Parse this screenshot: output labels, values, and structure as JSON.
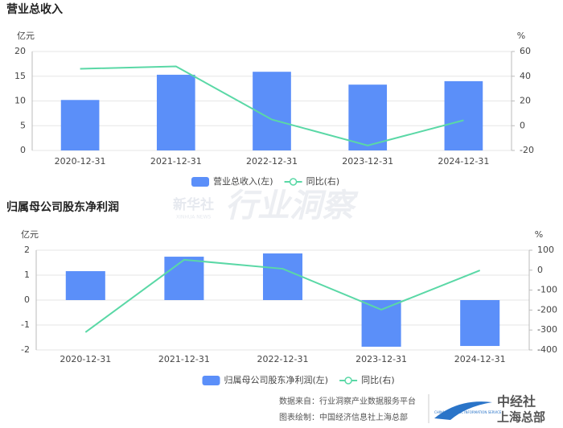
{
  "chart_data": [
    {
      "type": "bar-line",
      "title": "营业总收入",
      "y_label": "亿元",
      "y2_label": "%",
      "categories": [
        "2020-12-31",
        "2021-12-31",
        "2022-12-31",
        "2023-12-31",
        "2024-12-31"
      ],
      "series": [
        {
          "name": "营业总收入(左)",
          "type": "bar",
          "color": "#5b8ff9",
          "values": [
            10.2,
            15.3,
            15.9,
            13.3,
            14.0
          ]
        },
        {
          "name": "同比(右)",
          "type": "line",
          "axis": "y2",
          "color": "#5ad8a6",
          "values": [
            46,
            48,
            5,
            -16,
            4.4
          ]
        }
      ],
      "ylim": [
        0,
        20
      ],
      "yticks": [
        0,
        5,
        10,
        15,
        20
      ],
      "y2lim": [
        -20,
        60
      ],
      "y2ticks": [
        -20,
        0,
        20,
        40,
        60
      ],
      "grid": true
    },
    {
      "type": "bar-line",
      "title": "归属母公司股东净利润",
      "y_label": "亿元",
      "y2_label": "%",
      "categories": [
        "2020-12-31",
        "2021-12-31",
        "2022-12-31",
        "2023-12-31",
        "2024-12-31"
      ],
      "series": [
        {
          "name": "归属母公司股东净利润(左)",
          "type": "bar",
          "color": "#5b8ff9",
          "values": [
            1.16,
            1.74,
            1.87,
            -1.87,
            -1.84
          ]
        },
        {
          "name": "同比(右)",
          "type": "line",
          "axis": "y2",
          "color": "#5ad8a6",
          "values": [
            -311,
            52,
            7,
            -198,
            -1
          ]
        }
      ],
      "ylim": [
        -2,
        2
      ],
      "yticks": [
        -2,
        -1,
        0,
        1,
        2
      ],
      "y2lim": [
        -400,
        100
      ],
      "y2ticks": [
        -400,
        -300,
        -200,
        -100,
        0,
        100
      ],
      "grid": true
    }
  ],
  "watermark": {
    "brand": "新华社",
    "brand_en": "XINHUA NEWS",
    "text": "行业洞察"
  },
  "footer": {
    "source": "数据来自：行业洞察产业数据服务平台",
    "author": "图表绘制：中国经济信息社上海总部",
    "logo_cn": "中经社",
    "logo_sub": "上海总部",
    "logo_en": "CHINA ECONOMIC INFORMATION SERVICE"
  }
}
